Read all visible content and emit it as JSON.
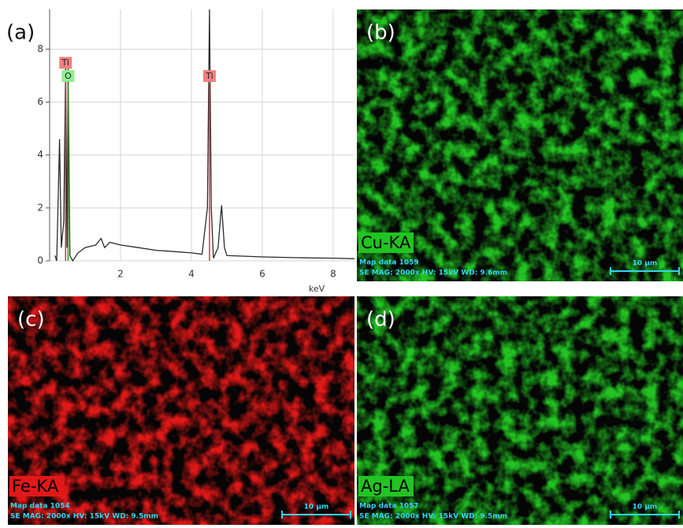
{
  "chart_data": {
    "type": "line",
    "panel_label": "(a)",
    "x_label": "keV",
    "series": [
      {
        "color": "#2b2b2b",
        "x": [
          0.15,
          0.2,
          0.28,
          0.33,
          0.4,
          0.45,
          0.49,
          0.52,
          0.57,
          0.65,
          0.8,
          1.0,
          1.3,
          1.45,
          1.55,
          1.7,
          2.0,
          2.5,
          3.0,
          3.5,
          4.0,
          4.3,
          4.45,
          4.51,
          4.56,
          4.62,
          4.75,
          4.85,
          4.93,
          5.0,
          6.0,
          7.0,
          8.0,
          8.6
        ],
        "values": [
          0.2,
          0,
          4.6,
          0.5,
          1.5,
          7.6,
          0.5,
          7.3,
          0.2,
          0,
          0.3,
          0.5,
          0.6,
          0.85,
          0.5,
          0.7,
          0.6,
          0.5,
          0.4,
          0.35,
          0.3,
          0.25,
          2,
          9.5,
          2,
          0.1,
          0.5,
          2.1,
          0.5,
          0.2,
          0.15,
          0.12,
          0.1,
          0.08
        ]
      }
    ],
    "peaks": [
      {
        "label": "Ti",
        "x": 0.45,
        "y": 7.2,
        "color": "#f08080"
      },
      {
        "label": "O",
        "x": 0.52,
        "y": 6.7,
        "color": "#90ee90"
      },
      {
        "label": "Ti",
        "x": 4.51,
        "y": 6.7,
        "color": "#f08080"
      }
    ],
    "xlim": [
      0,
      8.6
    ],
    "ylim": [
      0,
      9.5
    ],
    "xticks": [
      2,
      4,
      6,
      8
    ],
    "yticks": [
      0,
      2,
      4,
      6,
      8
    ],
    "grid": true
  },
  "maps": [
    {
      "panel_label": "(b)",
      "element": "Cu-KA",
      "color": "#22c322",
      "map_data": "Map data 1059",
      "settings": "SE  MAG: 2000x  HV: 15kV  WD: 9.6mm",
      "scale": "10 µm"
    },
    {
      "panel_label": "(c)",
      "element": "Fe-KA",
      "color": "#e01818",
      "map_data": "Map data 1054",
      "settings": "SE  MAG: 2000x  HV: 15kV  WD: 9.5mm",
      "scale": "10 µm"
    },
    {
      "panel_label": "(d)",
      "element": "Ag-LA",
      "color": "#22c322",
      "map_data": "Map data 1057",
      "settings": "SE  MAG: 2000x  HV: 15kV  WD: 9.5mm",
      "scale": "10 µm"
    }
  ]
}
